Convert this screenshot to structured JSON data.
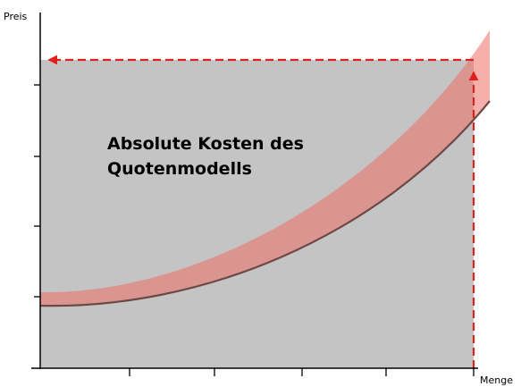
{
  "axes": {
    "y_label": "Preis",
    "x_label": "Menge"
  },
  "annotation": {
    "lines": [
      "Absolute Kosten des",
      "Quotenmodells"
    ]
  }
}
